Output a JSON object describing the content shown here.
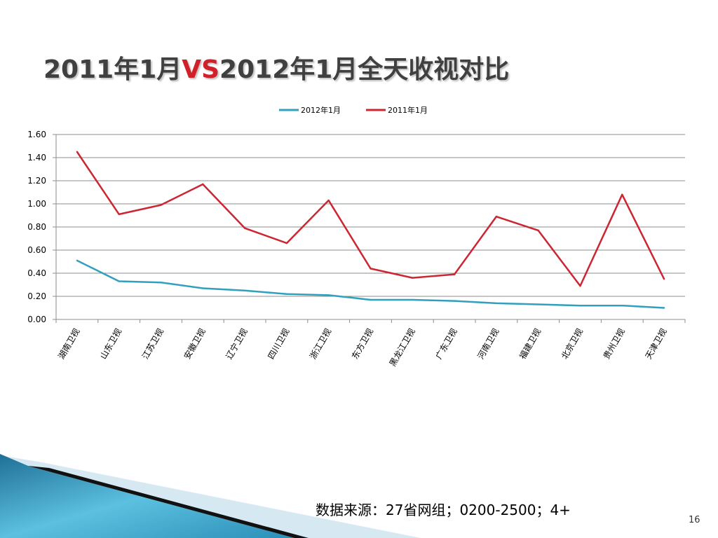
{
  "slide": {
    "title_part1": "2011年1月",
    "title_vs": "VS",
    "title_part2": "2012年1月全天收视对比",
    "source": "数据来源：27省网组；0200-2500；4+",
    "page_number": "16",
    "colors": {
      "title": "#404040",
      "vs": "#d0202a"
    }
  },
  "chart_data": {
    "type": "line",
    "title": "",
    "xlabel": "",
    "ylabel": "",
    "categories": [
      "湖南卫视",
      "山东卫视",
      "江苏卫视",
      "安徽卫视",
      "辽宁卫视",
      "四川卫视",
      "浙江卫视",
      "东方卫视",
      "黑龙江卫视",
      "广东卫视",
      "河南卫视",
      "福建卫视",
      "北京卫视",
      "贵州卫视",
      "天津卫视"
    ],
    "ylim": [
      0,
      1.6
    ],
    "yticks": [
      "0.00",
      "0.20",
      "0.40",
      "0.60",
      "0.80",
      "1.00",
      "1.20",
      "1.40",
      "1.60"
    ],
    "grid": true,
    "legend_position": "top",
    "series": [
      {
        "name": "2012年1月",
        "color": "#31a0bd",
        "values": [
          0.51,
          0.33,
          0.32,
          0.27,
          0.25,
          0.22,
          0.21,
          0.17,
          0.17,
          0.16,
          0.14,
          0.13,
          0.12,
          0.12,
          0.1
        ]
      },
      {
        "name": "2011年1月",
        "color": "#cc2633",
        "values": [
          1.45,
          0.91,
          0.99,
          1.17,
          0.79,
          0.66,
          1.03,
          0.44,
          0.36,
          0.39,
          0.89,
          0.77,
          0.29,
          1.08,
          0.35
        ]
      }
    ]
  }
}
